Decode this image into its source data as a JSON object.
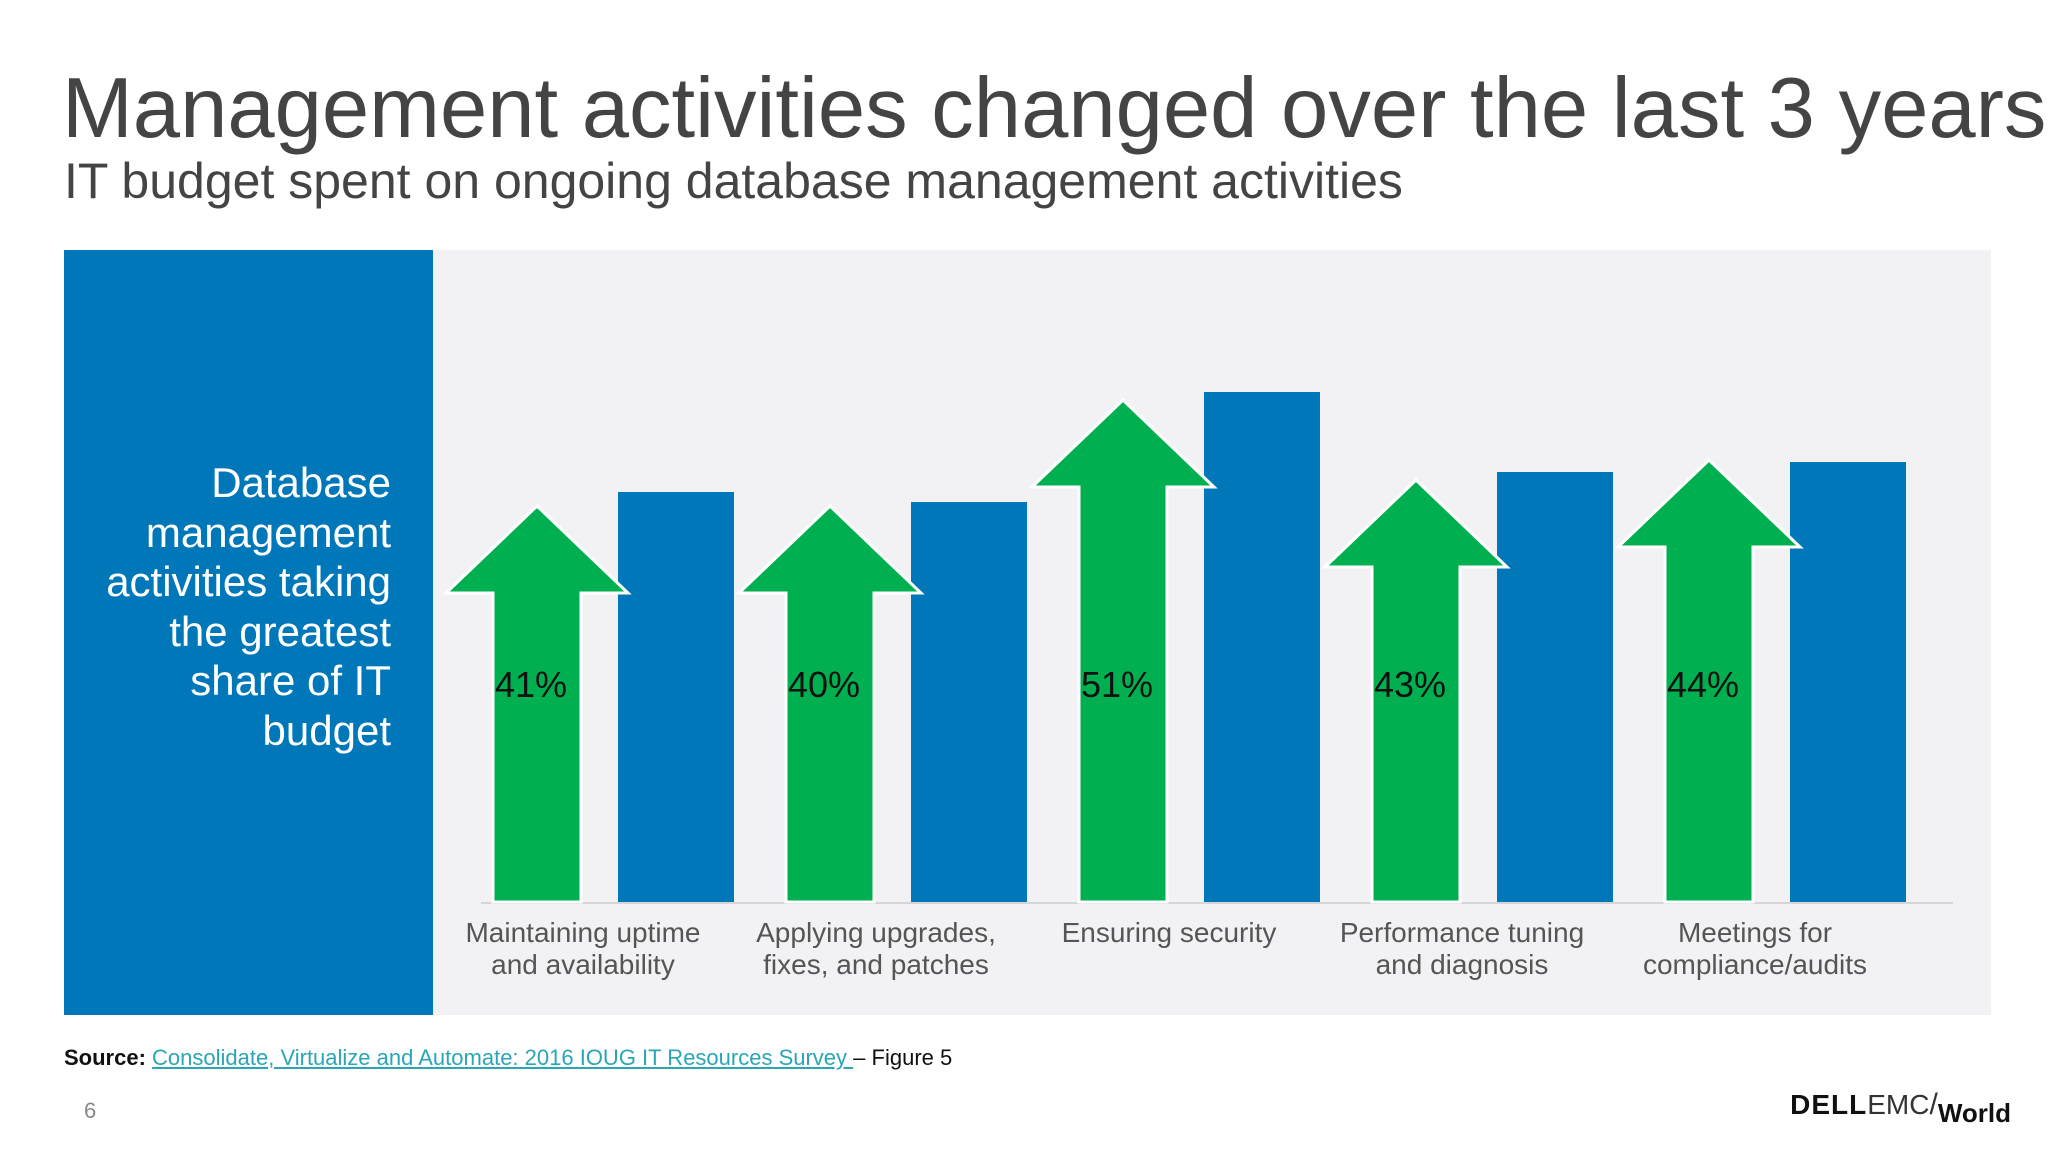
{
  "header": {
    "title": "Management activities changed over the last 3 years",
    "subtitle": "IT budget spent on ongoing database management activities"
  },
  "side_panel": {
    "text": "Database management activities taking the greatest share of IT budget"
  },
  "chart_data": {
    "type": "bar",
    "categories": [
      [
        "Maintaining uptime",
        "and availability"
      ],
      [
        "Applying upgrades,",
        "fixes, and patches"
      ],
      [
        "Ensuring security"
      ],
      [
        "Performance tuning",
        "and diagnosis"
      ],
      [
        "Meetings for",
        "compliance/audits"
      ]
    ],
    "values": [
      41,
      40,
      51,
      43,
      44
    ],
    "value_labels": [
      "41%",
      "40%",
      "51%",
      "43%",
      "44%"
    ],
    "title": "",
    "xlabel": "",
    "ylabel": "",
    "ylim": [
      0,
      60
    ],
    "grid": false,
    "legend": "none",
    "colors": {
      "arrow": "#00b050",
      "bar": "#0077b8",
      "panel": "#f2f2f4",
      "side": "#0077b8"
    }
  },
  "footer": {
    "source_label": "Source:",
    "source_link": "Consolidate, Virtualize and Automate: 2016 IOUG IT Resources Survey ",
    "source_suffix": " – Figure 5",
    "page_number": "6"
  },
  "logo": {
    "dell": "DELL",
    "emc": "EMC",
    "slash": "/",
    "world": "World"
  }
}
